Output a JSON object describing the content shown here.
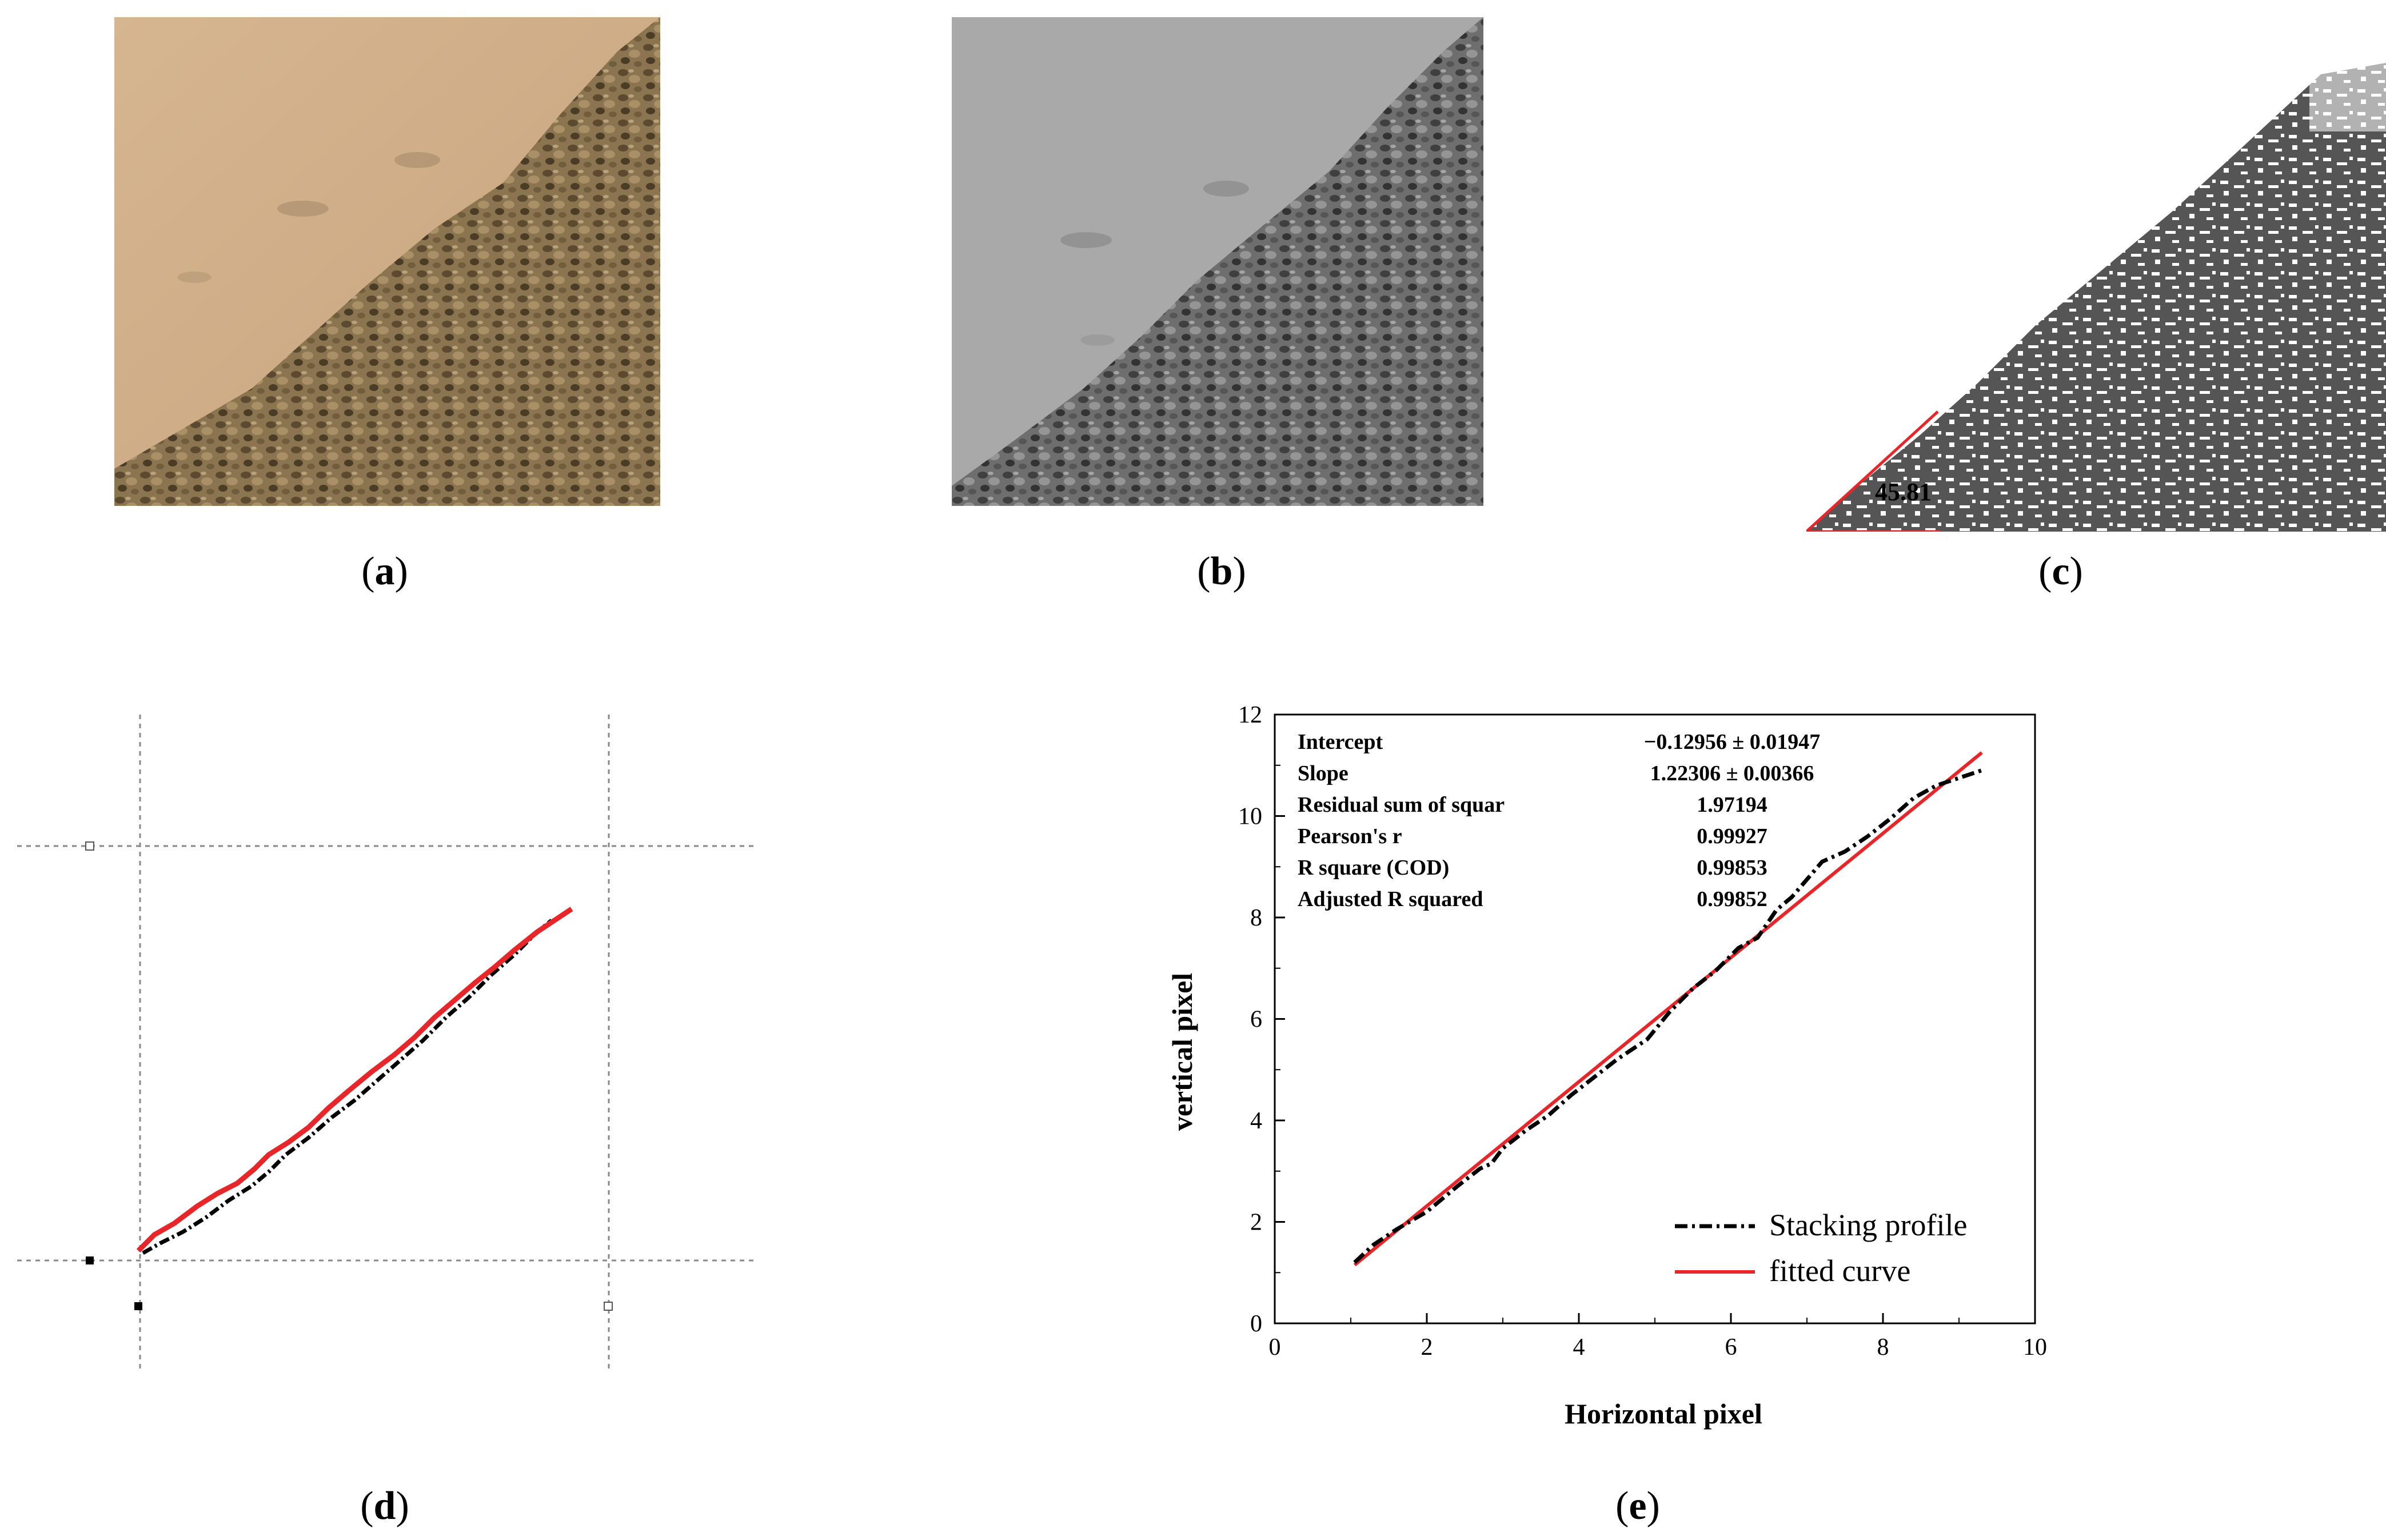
{
  "panels": {
    "a": {
      "letter": "a"
    },
    "b": {
      "letter": "b"
    },
    "c": {
      "letter": "c",
      "angle_label": "45.81"
    },
    "d": {
      "letter": "d"
    },
    "e": {
      "letter": "e"
    }
  },
  "colors": {
    "fit_line": "#e8262a",
    "profile_line": "#000000",
    "sand_light": "#c9a27a",
    "gray_light": "#a8a8a8"
  },
  "chart_data": {
    "type": "line",
    "xlabel": "Horizontal pixel",
    "ylabel": "vertical pixel",
    "xlim": [
      0,
      10
    ],
    "ylim": [
      0,
      12
    ],
    "x_ticks": [
      "0",
      "2",
      "4",
      "6",
      "8",
      "10"
    ],
    "y_ticks": [
      "0",
      "2",
      "4",
      "6",
      "8",
      "10",
      "12"
    ],
    "legend": {
      "position": "bottom-right",
      "entries": [
        "Stacking profile",
        "fitted curve"
      ]
    },
    "stats": [
      {
        "label": "Intercept",
        "value": "−0.12956 ± 0.01947"
      },
      {
        "label": "Slope",
        "value": "1.22306 ± 0.00366"
      },
      {
        "label": "Residual sum of squar",
        "value": "1.97194"
      },
      {
        "label": "Pearson's r",
        "value": "0.99927"
      },
      {
        "label": "R square (COD)",
        "value": "0.99853"
      },
      {
        "label": "Adjusted R squared",
        "value": "0.99852"
      }
    ],
    "series": [
      {
        "name": "Stacking profile",
        "x": [
          1.05,
          1.3,
          1.6,
          2.0,
          2.4,
          2.7,
          2.85,
          3.0,
          3.3,
          3.6,
          3.9,
          4.2,
          4.5,
          4.75,
          4.9,
          5.2,
          5.5,
          5.8,
          6.1,
          6.35,
          6.6,
          6.8,
          7.0,
          7.2,
          7.5,
          7.8,
          8.1,
          8.4,
          8.7,
          9.0,
          9.3
        ],
        "y": [
          1.2,
          1.55,
          1.85,
          2.2,
          2.7,
          3.05,
          3.15,
          3.45,
          3.8,
          4.1,
          4.5,
          4.85,
          5.2,
          5.45,
          5.6,
          6.15,
          6.6,
          6.95,
          7.4,
          7.6,
          8.15,
          8.4,
          8.75,
          9.1,
          9.3,
          9.6,
          9.95,
          10.35,
          10.6,
          10.75,
          10.9
        ]
      },
      {
        "name": "fitted curve",
        "x": [
          1.05,
          9.3
        ],
        "y": [
          1.15,
          11.25
        ]
      }
    ]
  }
}
